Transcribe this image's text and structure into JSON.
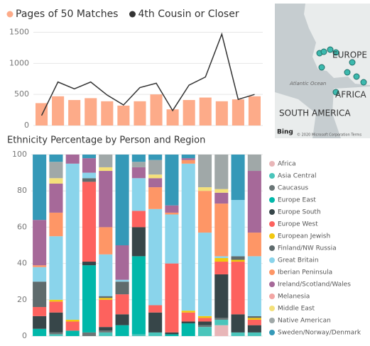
{
  "chart_data": [
    {
      "type": "combo",
      "categories": [
        null,
        null,
        null,
        null,
        null,
        null,
        null,
        null,
        null,
        null,
        null,
        null,
        null,
        null
      ],
      "ylim": [
        0,
        1700
      ],
      "yticks": [
        0,
        500,
        1000,
        1500
      ],
      "grid": true,
      "legend": "top",
      "series": [
        {
          "name": "Pages of 50 Matches",
          "type": "bar",
          "color": "#fdab89",
          "values": [
            360,
            470,
            410,
            440,
            390,
            320,
            390,
            500,
            260,
            410,
            450,
            390,
            420,
            470
          ]
        },
        {
          "name": "4th Cousin or Closer",
          "type": "line",
          "color": "#333333",
          "values": [
            160,
            700,
            590,
            700,
            490,
            330,
            610,
            680,
            240,
            650,
            780,
            1470,
            420,
            500
          ]
        }
      ]
    },
    {
      "type": "stacked_bar",
      "title": "Ethnicity Percentage by Person and Region",
      "categories": [
        null,
        null,
        null,
        null,
        null,
        null,
        null,
        null,
        null,
        null,
        null,
        null,
        null,
        null
      ],
      "ylim": [
        0,
        100
      ],
      "yticks": [
        0,
        20,
        40,
        60,
        80,
        100
      ],
      "grid": true,
      "legend": "right",
      "series": [
        {
          "name": "Africa",
          "color": "#e8b6b8",
          "values": [
            0,
            0,
            0,
            0,
            0,
            0,
            0,
            0,
            0,
            0,
            0,
            6,
            0,
            0
          ]
        },
        {
          "name": "Asia Central",
          "color": "#4ac5bb",
          "values": [
            0,
            1,
            0,
            0,
            2,
            0,
            1,
            2,
            0,
            0,
            5,
            3,
            2,
            2
          ]
        },
        {
          "name": "Caucasus",
          "color": "#6b7677",
          "values": [
            0,
            1,
            0,
            2,
            1,
            0,
            0,
            0,
            0,
            0,
            1,
            1,
            0,
            0
          ]
        },
        {
          "name": "Europe East",
          "color": "#01b8aa",
          "values": [
            4,
            0,
            3,
            37,
            0,
            6,
            43,
            0,
            1,
            7,
            0,
            0,
            0,
            0
          ]
        },
        {
          "name": "Europe South",
          "color": "#374649",
          "values": [
            7,
            11,
            0,
            2,
            2,
            6,
            16,
            11,
            1,
            1,
            2,
            24,
            10,
            4
          ]
        },
        {
          "name": "Europe West",
          "color": "#fd625e",
          "values": [
            5,
            6,
            5,
            44,
            15,
            11,
            9,
            4,
            38,
            5,
            2,
            7,
            29,
            3
          ]
        },
        {
          "name": "European Jewish",
          "color": "#f2c80f",
          "values": [
            0,
            1,
            1,
            0,
            1,
            0,
            0,
            0,
            0,
            1,
            1,
            2,
            1,
            1
          ]
        },
        {
          "name": "Finland/NW Russia",
          "color": "#5f6b6d",
          "values": [
            14,
            0,
            0,
            2,
            1,
            7,
            0,
            0,
            0,
            0,
            0,
            0,
            2,
            1
          ]
        },
        {
          "name": "Great Britain",
          "color": "#8ad4eb",
          "values": [
            8,
            35,
            86,
            3,
            23,
            1,
            18,
            53,
            27,
            81,
            46,
            1,
            31,
            33
          ]
        },
        {
          "name": "Iberian Peninsula",
          "color": "#fe9666",
          "values": [
            1,
            13,
            0,
            0,
            15,
            0,
            0,
            12,
            1,
            2,
            23,
            29,
            0,
            13
          ]
        },
        {
          "name": "Ireland/Scotland/Wales",
          "color": "#a66999",
          "values": [
            25,
            16,
            5,
            8,
            31,
            19,
            6,
            5,
            4,
            1,
            0,
            6,
            0,
            34
          ]
        },
        {
          "name": "Melanesia",
          "color": "#f3a6a4",
          "values": [
            0,
            0,
            0,
            0,
            0,
            0,
            0,
            0,
            0,
            0,
            0,
            0,
            0,
            0
          ]
        },
        {
          "name": "Middle East",
          "color": "#f4e07a",
          "values": [
            0,
            3,
            0,
            0,
            2,
            0,
            0,
            2,
            0,
            0,
            2,
            2,
            0,
            0
          ]
        },
        {
          "name": "Native American",
          "color": "#a0a8a8",
          "values": [
            0,
            9,
            0,
            0,
            7,
            0,
            3,
            8,
            0,
            0,
            18,
            19,
            0,
            9
          ]
        },
        {
          "name": "Sweden/Norway/Denmark",
          "color": "#3599b8",
          "values": [
            36,
            4,
            0,
            2,
            0,
            50,
            4,
            3,
            28,
            2,
            0,
            0,
            25,
            0
          ]
        }
      ]
    }
  ],
  "map": {
    "labels": [
      "EUROPE",
      "Atlantic Ocean",
      "AFRICA",
      "SOUTH AMERICA"
    ],
    "logo": "Bing",
    "copyright": "© 2020 Microsoft Corporation Terms"
  }
}
